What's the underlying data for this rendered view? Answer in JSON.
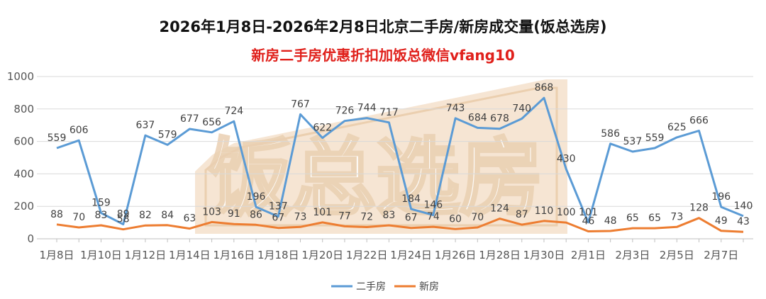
{
  "chart_data": {
    "type": "line",
    "title": "2026年1月8日-2026年2月8日北京二手房/新房成交量(饭总选房)",
    "subtitle": "新房二手房优惠折扣加饭总微信vfang10",
    "watermark": "饭总选房",
    "ylim": [
      0,
      1000
    ],
    "yticks": [
      0,
      200,
      400,
      600,
      800,
      1000
    ],
    "x_tick_labels": [
      "1月8日",
      "1月10日",
      "1月12日",
      "1月14日",
      "1月16日",
      "1月18日",
      "1月20日",
      "1月22日",
      "1月24日",
      "1月26日",
      "1月28日",
      "1月30日",
      "2月1日",
      "2月3日",
      "2月5日",
      "2月7日"
    ],
    "x": [
      "1月8日",
      "1月9日",
      "1月10日",
      "1月11日",
      "1月12日",
      "1月13日",
      "1月14日",
      "1月15日",
      "1月16日",
      "1月17日",
      "1月18日",
      "1月19日",
      "1月20日",
      "1月21日",
      "1月22日",
      "1月23日",
      "1月24日",
      "1月25日",
      "1月26日",
      "1月27日",
      "1月28日",
      "1月29日",
      "1月30日",
      "1月31日",
      "2月1日",
      "2月2日",
      "2月3日",
      "2月4日",
      "2月5日",
      "2月6日",
      "2月7日",
      "2月8日"
    ],
    "series": [
      {
        "name": "二手房",
        "color": "#5b9bd5",
        "values": [
          559,
          606,
          159,
          89,
          637,
          579,
          677,
          656,
          724,
          196,
          137,
          767,
          622,
          726,
          744,
          717,
          184,
          146,
          743,
          684,
          678,
          740,
          868,
          430,
          101,
          586,
          537,
          559,
          625,
          666,
          196,
          140
        ]
      },
      {
        "name": "新房",
        "color": "#ed7d31",
        "values": [
          88,
          70,
          83,
          58,
          82,
          84,
          63,
          103,
          91,
          86,
          67,
          73,
          101,
          77,
          72,
          83,
          67,
          74,
          60,
          70,
          124,
          87,
          110,
          100,
          46,
          48,
          65,
          65,
          73,
          128,
          49,
          43
        ]
      }
    ],
    "legend_position": "bottom"
  }
}
